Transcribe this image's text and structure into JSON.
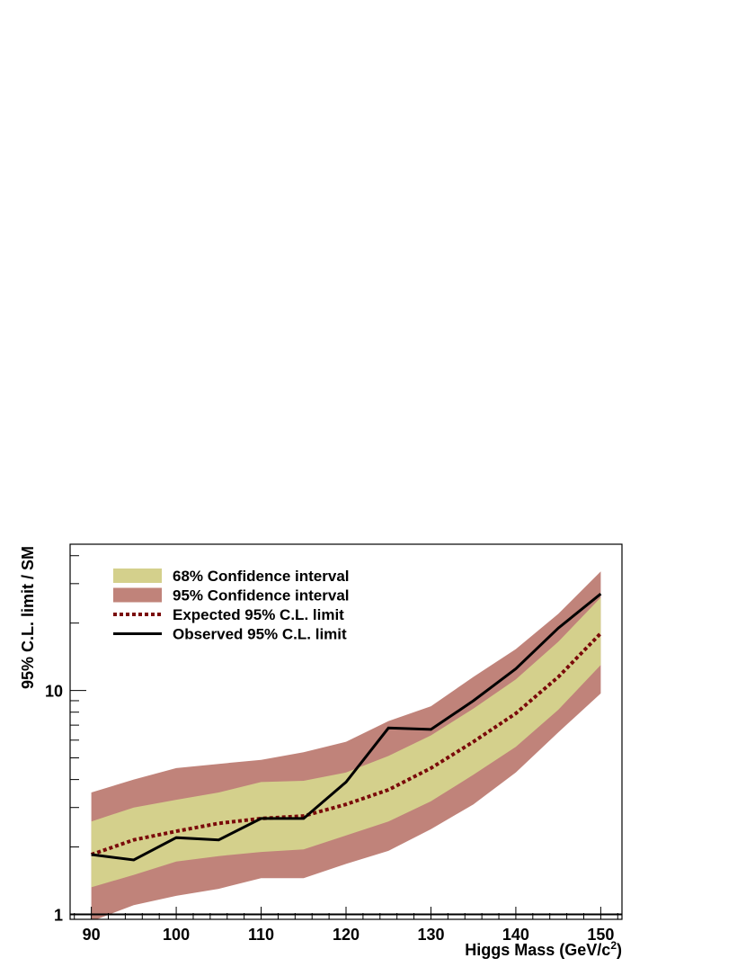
{
  "chart_data": {
    "type": "area",
    "ylog": true,
    "xlabel": "Higgs Mass (GeV/c",
    "xlabel_sup": "2",
    "xlabel_close": ")",
    "ylabel": "95% C.L. limit / SM",
    "xlim": [
      87.5,
      152.5
    ],
    "ylim": [
      0.95,
      45
    ],
    "x_ticks": [
      90,
      100,
      110,
      120,
      130,
      140,
      150
    ],
    "x_tick_labels": [
      "90",
      "100",
      "110",
      "120",
      "130",
      "140",
      "150"
    ],
    "y_ticks": [
      1,
      10
    ],
    "y_tick_labels": [
      "1",
      "10"
    ],
    "reference_line": 1,
    "x": [
      90,
      95,
      100,
      105,
      110,
      115,
      120,
      125,
      130,
      135,
      140,
      145,
      150
    ],
    "band95_low": [
      0.93,
      1.1,
      1.21,
      1.3,
      1.45,
      1.45,
      1.68,
      1.92,
      2.4,
      3.1,
      4.3,
      6.5,
      9.7
    ],
    "band95_high": [
      3.5,
      4.0,
      4.5,
      4.7,
      4.9,
      5.3,
      5.9,
      7.3,
      8.5,
      11.5,
      15.3,
      22.0,
      34.0
    ],
    "band68_low": [
      1.32,
      1.5,
      1.72,
      1.82,
      1.9,
      1.95,
      2.25,
      2.6,
      3.2,
      4.2,
      5.6,
      8.2,
      13.0
    ],
    "band68_high": [
      2.6,
      3.0,
      3.25,
      3.5,
      3.9,
      3.95,
      4.3,
      5.1,
      6.3,
      8.3,
      11.2,
      16.5,
      26.0
    ],
    "expected": [
      1.85,
      2.15,
      2.35,
      2.55,
      2.68,
      2.75,
      3.1,
      3.6,
      4.5,
      5.9,
      7.9,
      11.5,
      18.0
    ],
    "observed": [
      1.85,
      1.75,
      2.2,
      2.15,
      2.68,
      2.68,
      3.9,
      6.8,
      6.7,
      9.0,
      12.5,
      19.0,
      27.0
    ],
    "legend": [
      {
        "label": "68% Confidence interval",
        "kind": "fill",
        "color": "#d4d08c"
      },
      {
        "label": "95% Confidence interval",
        "kind": "fill",
        "color": "#c0837a"
      },
      {
        "label": "Expected 95% C.L. limit",
        "kind": "dotted",
        "color": "#7a0a0a"
      },
      {
        "label": "Observed 95% C.L. limit",
        "kind": "solid",
        "color": "#000000"
      }
    ],
    "colors": {
      "band68": "#d4d08c",
      "band95": "#c0837a",
      "expected": "#7a0a0a",
      "observed": "#000000"
    }
  }
}
